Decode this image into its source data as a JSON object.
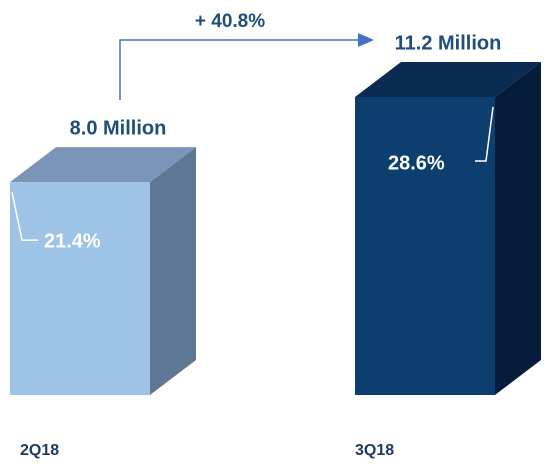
{
  "chart_data": {
    "type": "bar",
    "categories": [
      "2Q18",
      "3Q18"
    ],
    "values": [
      8.0,
      11.2
    ],
    "value_labels": [
      "8.0 Million",
      "11.2 Million"
    ],
    "inner_labels": [
      "21.4%",
      "28.6%"
    ],
    "growth_label": "+ 40.8%",
    "colors": [
      {
        "front": "#9dc3e6",
        "top": "#7b95b9",
        "side": "#5e7893"
      },
      {
        "front": "#0c3f70",
        "top": "#0a2b52",
        "side": "#051d3b"
      }
    ],
    "label_color": "#1f4e79"
  }
}
